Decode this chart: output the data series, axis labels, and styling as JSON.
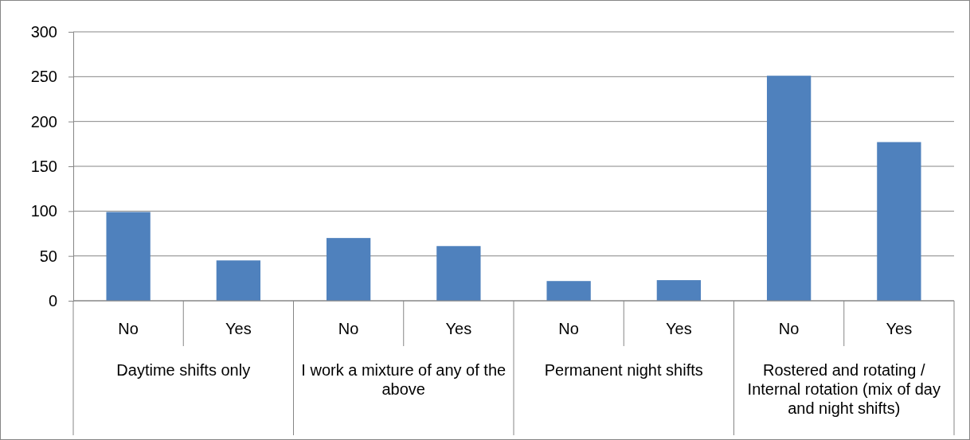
{
  "chart_data": {
    "type": "bar",
    "categories": [
      "No",
      "Yes",
      "No",
      "Yes",
      "No",
      "Yes",
      "No",
      "Yes"
    ],
    "values": [
      99,
      45,
      70,
      61,
      22,
      23,
      251,
      177
    ],
    "color": "#4f81bd",
    "ylim": [
      0,
      300
    ],
    "yticks": [
      0,
      50,
      100,
      150,
      200,
      250,
      300
    ],
    "grid": "y",
    "annotations": [
      "Daytime shifts only",
      "I work a mixture of any of the above",
      "Permanent night shifts",
      "Rostered and rotating / Internal rotation (mix of day and night shifts)"
    ]
  }
}
